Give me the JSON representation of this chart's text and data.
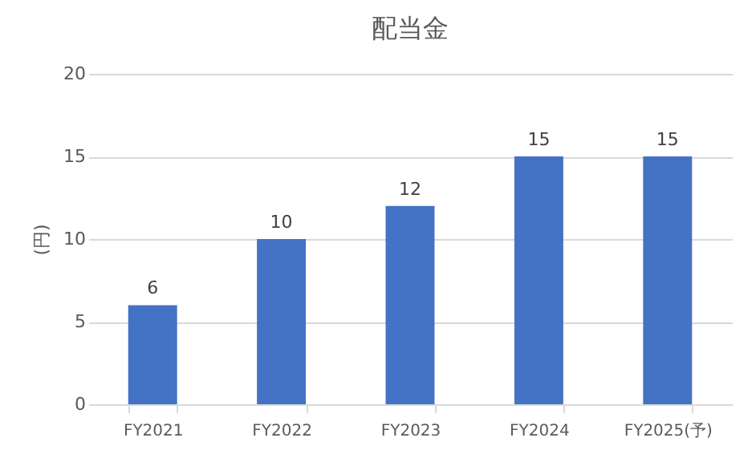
{
  "chart_data": {
    "type": "bar",
    "title": "配当金",
    "ylabel": "(円)",
    "categories": [
      "FY2021",
      "FY2022",
      "FY2023",
      "FY2024",
      "FY2025(予)"
    ],
    "values": [
      6,
      10,
      12,
      15,
      15
    ],
    "color": "#4472c4",
    "ylim": [
      0,
      20
    ],
    "yticks": [
      0,
      5,
      10,
      15,
      20
    ],
    "grid": "y",
    "data_labels": true
  }
}
